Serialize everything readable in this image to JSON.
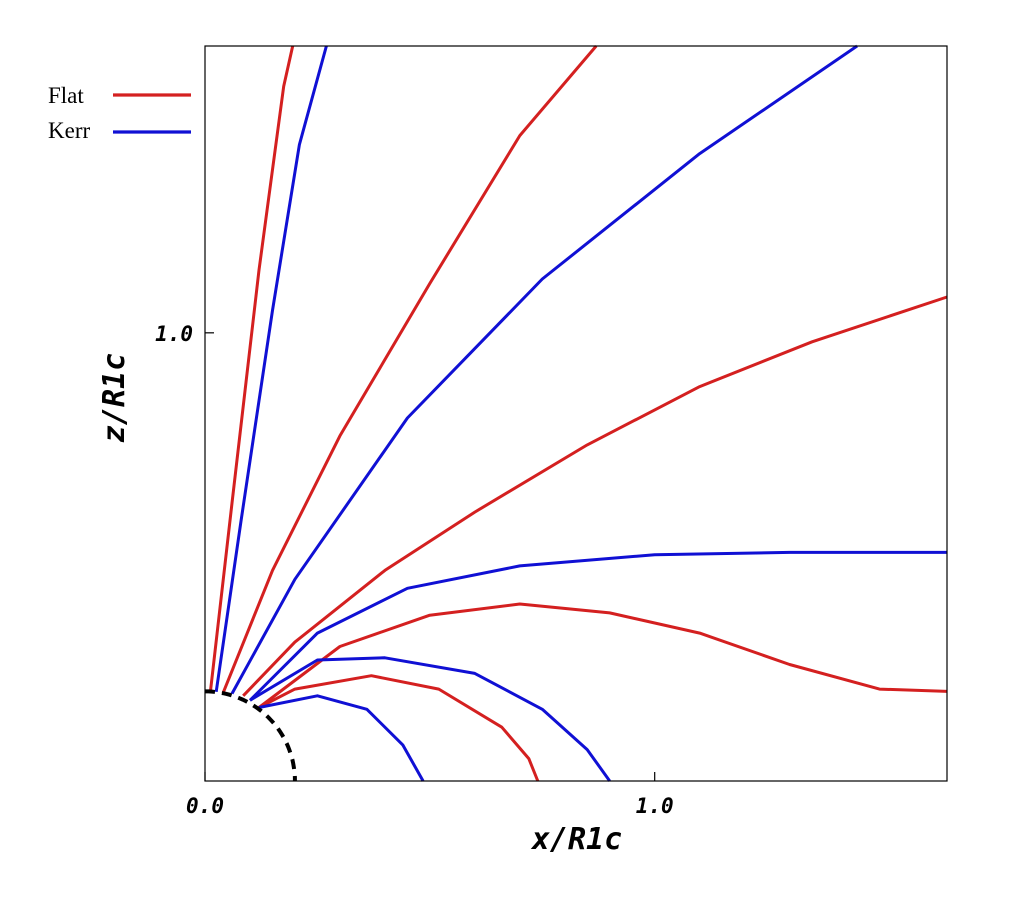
{
  "chart_data": {
    "type": "line",
    "xlabel": "x/R1c",
    "ylabel": "z/R1c",
    "xlim": [
      0.0,
      1.65
    ],
    "ylim": [
      0.0,
      1.64
    ],
    "xticks": [
      {
        "value": 0.0,
        "label": "0.0"
      },
      {
        "value": 1.0,
        "label": "1.0"
      }
    ],
    "yticks": [
      {
        "value": 1.0,
        "label": "1.0"
      }
    ],
    "grid": false,
    "legend_position": "upper-left, outside plot",
    "legend": [
      {
        "label": "Flat",
        "color": "#d42020"
      },
      {
        "label": "Kerr",
        "color": "#1010d4"
      }
    ],
    "stellar_surface": {
      "style": "dashed",
      "color": "#000000",
      "radius": 0.2
    },
    "series": [
      {
        "name": "Flat",
        "color": "#d42020",
        "lines": [
          [
            [
              0.012,
              0.199
            ],
            [
              0.06,
              0.62
            ],
            [
              0.12,
              1.14
            ],
            [
              0.175,
              1.55
            ],
            [
              0.195,
              1.64
            ]
          ],
          [
            [
              0.04,
              0.196
            ],
            [
              0.15,
              0.47
            ],
            [
              0.3,
              0.77
            ],
            [
              0.5,
              1.11
            ],
            [
              0.7,
              1.44
            ],
            [
              0.87,
              1.64
            ]
          ],
          [
            [
              0.085,
              0.19
            ],
            [
              0.2,
              0.31
            ],
            [
              0.4,
              0.47
            ],
            [
              0.6,
              0.6
            ],
            [
              0.85,
              0.75
            ],
            [
              1.1,
              0.88
            ],
            [
              1.35,
              0.98
            ],
            [
              1.65,
              1.08
            ]
          ],
          [
            [
              0.12,
              0.164
            ],
            [
              0.3,
              0.3
            ],
            [
              0.5,
              0.37
            ],
            [
              0.7,
              0.395
            ],
            [
              0.9,
              0.375
            ],
            [
              1.1,
              0.33
            ],
            [
              1.3,
              0.26
            ],
            [
              1.5,
              0.205
            ],
            [
              1.65,
              0.2
            ]
          ],
          [
            [
              0.12,
              0.164
            ],
            [
              0.2,
              0.205
            ],
            [
              0.37,
              0.235
            ],
            [
              0.52,
              0.205
            ],
            [
              0.66,
              0.12
            ],
            [
              0.72,
              0.05
            ],
            [
              0.74,
              0.0
            ]
          ]
        ]
      },
      {
        "name": "Kerr",
        "color": "#1010d4",
        "lines": [
          [
            [
              0.025,
              0.199
            ],
            [
              0.08,
              0.58
            ],
            [
              0.15,
              1.05
            ],
            [
              0.21,
              1.42
            ],
            [
              0.27,
              1.64
            ]
          ],
          [
            [
              0.06,
              0.195
            ],
            [
              0.2,
              0.45
            ],
            [
              0.45,
              0.81
            ],
            [
              0.75,
              1.12
            ],
            [
              1.1,
              1.4
            ],
            [
              1.45,
              1.64
            ]
          ],
          [
            [
              0.1,
              0.18
            ],
            [
              0.25,
              0.33
            ],
            [
              0.45,
              0.43
            ],
            [
              0.7,
              0.48
            ],
            [
              1.0,
              0.505
            ],
            [
              1.3,
              0.51
            ],
            [
              1.65,
              0.51
            ]
          ],
          [
            [
              0.1,
              0.18
            ],
            [
              0.25,
              0.27
            ],
            [
              0.4,
              0.275
            ],
            [
              0.6,
              0.24
            ],
            [
              0.75,
              0.16
            ],
            [
              0.85,
              0.07
            ],
            [
              0.9,
              0.0
            ]
          ],
          [
            [
              0.12,
              0.164
            ],
            [
              0.25,
              0.19
            ],
            [
              0.36,
              0.16
            ],
            [
              0.44,
              0.08
            ],
            [
              0.485,
              0.0
            ]
          ]
        ]
      }
    ]
  }
}
